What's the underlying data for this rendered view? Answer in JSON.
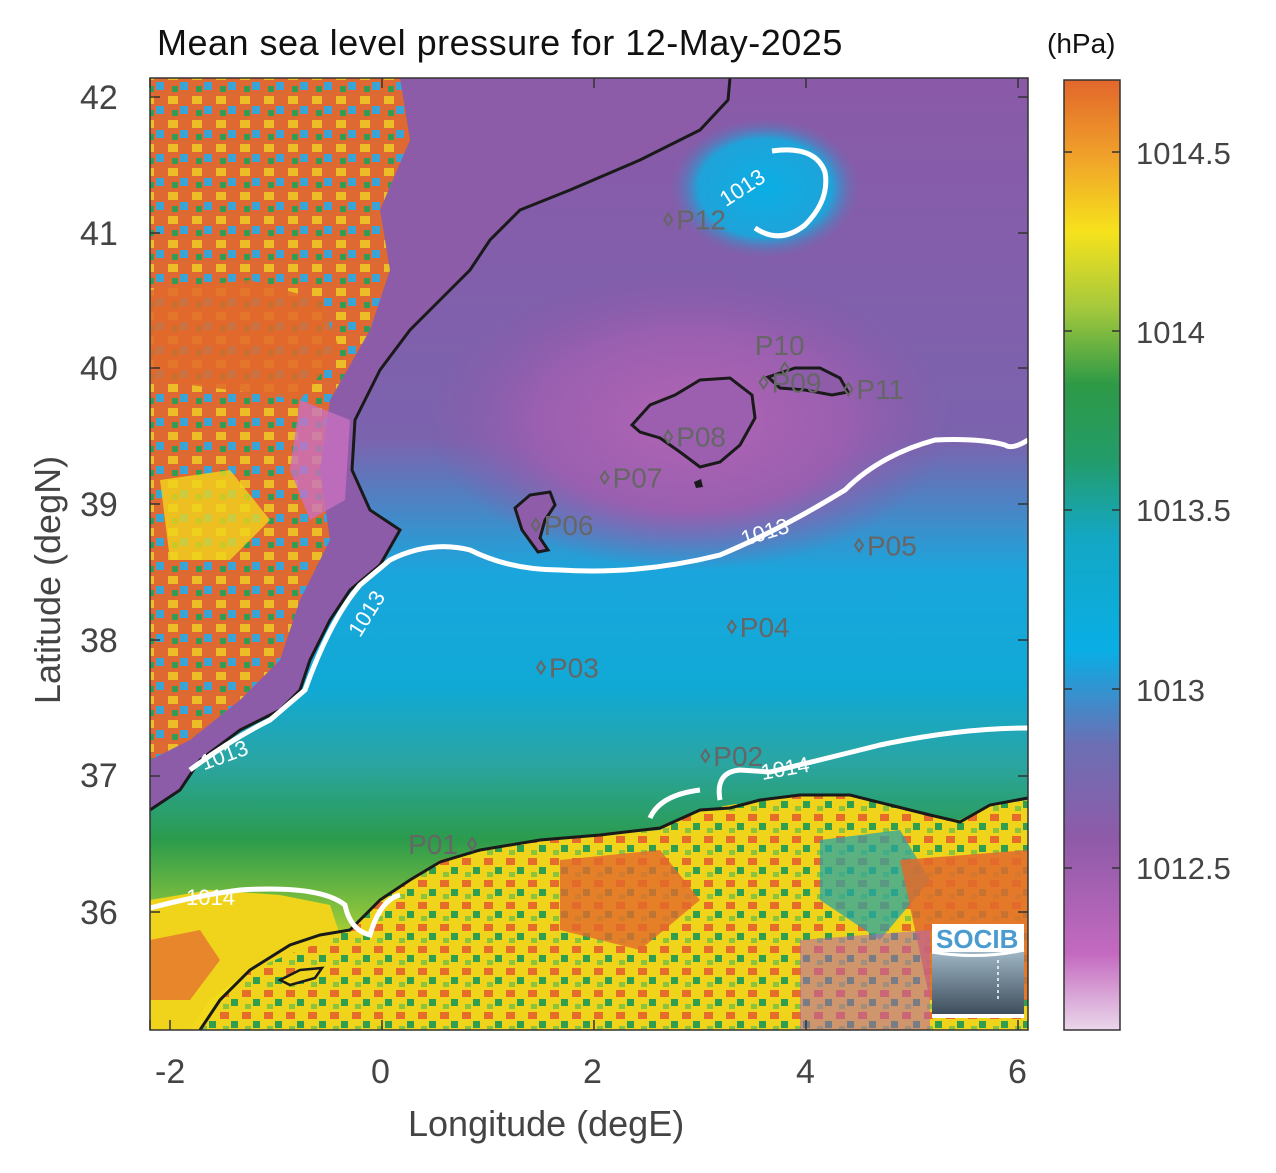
{
  "title": "Mean sea level pressure for 12-May-2025",
  "units": "(hPa)",
  "xlabel": "Longitude (degE)",
  "ylabel": "Latitude (degN)",
  "logo_text": "SOCIB",
  "axes": {
    "x_ticks": [
      "-2",
      "0",
      "2",
      "4",
      "6"
    ],
    "y_ticks": [
      "36",
      "37",
      "38",
      "39",
      "40",
      "41",
      "42"
    ]
  },
  "colorbar": {
    "ticks": [
      "1012.5",
      "1013",
      "1013.5",
      "1014",
      "1014.5"
    ],
    "min": 1012.05,
    "max": 1014.7
  },
  "contour_label": {
    "c1013": "1013",
    "c1014": "1014"
  },
  "stations": [
    {
      "id": "P01",
      "lon": 0.85,
      "lat": 36.5
    },
    {
      "id": "P02",
      "lon": 3.05,
      "lat": 37.15
    },
    {
      "id": "P03",
      "lon": 1.5,
      "lat": 37.8
    },
    {
      "id": "P04",
      "lon": 3.3,
      "lat": 38.1
    },
    {
      "id": "P05",
      "lon": 4.5,
      "lat": 38.7
    },
    {
      "id": "P06",
      "lon": 1.45,
      "lat": 38.85
    },
    {
      "id": "P07",
      "lon": 2.1,
      "lat": 39.2
    },
    {
      "id": "P08",
      "lon": 2.7,
      "lat": 39.5
    },
    {
      "id": "P09",
      "lon": 3.6,
      "lat": 39.9
    },
    {
      "id": "P10",
      "lon": 3.8,
      "lat": 40.0
    },
    {
      "id": "P11",
      "lon": 4.4,
      "lat": 39.85
    },
    {
      "id": "P12",
      "lon": 2.7,
      "lat": 41.1
    }
  ],
  "colors": {
    "land_high": "#e26a2c",
    "land_mid": "#f3e215",
    "green": "#2f9e4f",
    "cyan": "#08a8de",
    "purple": "#8e5ca8",
    "magenta": "#b160b1",
    "coast": "#1a1a1a",
    "contour": "#ffffff",
    "station": "#666666"
  }
}
